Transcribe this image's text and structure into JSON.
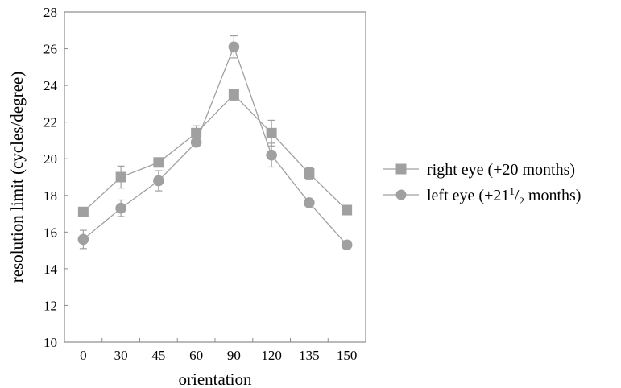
{
  "chart_data": {
    "type": "line",
    "title": "",
    "xlabel": "orientation",
    "ylabel": "resolution limit (cycles/degree)",
    "categories": [
      "0",
      "30",
      "45",
      "60",
      "90",
      "120",
      "135",
      "150"
    ],
    "ylim": [
      10,
      28
    ],
    "yticks": [
      "10",
      "12",
      "14",
      "16",
      "18",
      "20",
      "22",
      "24",
      "26",
      "28"
    ],
    "grid": false,
    "legend_position": "right",
    "series": [
      {
        "name": "right eye (+20 months)",
        "marker": "square",
        "color": "#a0a0a0",
        "values": [
          17.1,
          19.0,
          19.8,
          21.4,
          23.5,
          21.4,
          19.2,
          17.2
        ],
        "errors": [
          0.15,
          0.6,
          0.2,
          0.4,
          0.3,
          0.7,
          0.3,
          0.1
        ]
      },
      {
        "name_parts": {
          "prefix": "left eye (+21",
          "sup": "1",
          "slash": "/",
          "sub": "2",
          "suffix": " months)"
        },
        "marker": "circle",
        "color": "#a0a0a0",
        "values": [
          15.6,
          17.3,
          18.8,
          20.9,
          26.1,
          20.2,
          17.6,
          15.3
        ],
        "errors": [
          0.5,
          0.45,
          0.55,
          0.1,
          0.6,
          0.65,
          0.1,
          0.1
        ]
      }
    ]
  }
}
